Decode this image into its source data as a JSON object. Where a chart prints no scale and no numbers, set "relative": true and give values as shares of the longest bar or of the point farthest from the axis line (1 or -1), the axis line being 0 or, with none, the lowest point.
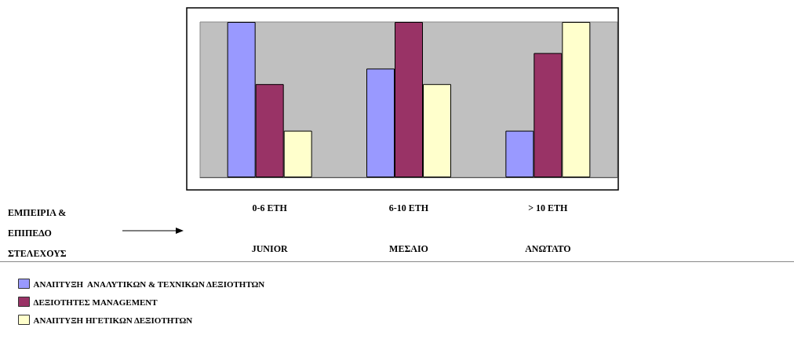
{
  "chart_data": {
    "type": "bar",
    "relative": true,
    "annotations": [
      "ΕΜΠΕΙΡΙΑ &\nΕΠΙΠΕΔΟ\nΣΤΕΛΕΧΟΥΣ"
    ],
    "categories": [
      "0-6 ΕΤΗ\nJUNIOR",
      "6-10 ΕΤΗ\nΜΕΣΑΙΟ",
      "> 10 ΕΤΗ\nΑΝΩΤΑΤΟ"
    ],
    "series": [
      {
        "name": "ΑΝΑΠΤΥΞΗ  ΑΝΑΛΥΤΙΚΩΝ & ΤΕΧΝΙΚΩΝ ΔΕΞΙΟΤΗΤΩΝ",
        "color": "#9999ff",
        "values": [
          1,
          0.7,
          0.3
        ]
      },
      {
        "name": "ΔΕΞΙΟΤΗΤΕΣ MANAGEMENT",
        "color": "#993366",
        "values": [
          0.6,
          1,
          0.8
        ]
      },
      {
        "name": "ΑΝΑΠΤΥΞΗ ΗΓΕΤΙΚΩΝ ΔΕΞΙΟΤΗΤΩΝ",
        "color": "#ffffcc",
        "values": [
          0.3,
          0.6,
          1
        ]
      }
    ],
    "legend": "bottom left"
  }
}
